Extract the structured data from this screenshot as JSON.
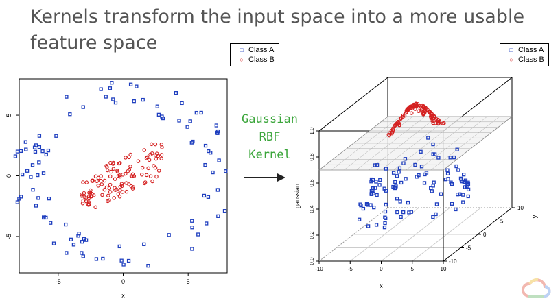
{
  "slide": {
    "title": "Kernels transform the input space into a more usable feature space",
    "kernel_lines": [
      "Gaussian",
      "RBF",
      "Kernel"
    ],
    "accent_color": "#3aa53a",
    "logo_icon": "google-cloud-logo"
  },
  "chart_data": [
    {
      "type": "scatter",
      "xlabel": "x",
      "ylabel": "",
      "xlim": [
        -8,
        8
      ],
      "ylim": [
        -8,
        8
      ],
      "xticks": [
        -5,
        0,
        5
      ],
      "yticks": [
        -5,
        0,
        5
      ],
      "grid": false,
      "legend_placement": "top-right, outside",
      "series": [
        {
          "name": "Class A",
          "marker": "square",
          "color": "#1f3fbf",
          "shape": "ring",
          "r_range": [
            6,
            8.5
          ],
          "count": 100
        },
        {
          "name": "Class B",
          "marker": "circle",
          "color": "#d42020",
          "shape": "cluster",
          "center": [
            0,
            0
          ],
          "spread": 3.2,
          "count": 120
        }
      ]
    },
    {
      "type": "scatter",
      "projection": "3d",
      "xlabel": "x",
      "ylabel": "y",
      "zlabel": "gaussian",
      "xlim": [
        -10,
        10
      ],
      "ylim": [
        -10,
        10
      ],
      "zlim": [
        0,
        1
      ],
      "xticks": [
        -10,
        -5,
        0,
        5,
        10
      ],
      "yticks": [
        -10,
        -5,
        0,
        5,
        10
      ],
      "zticks": [
        0.0,
        0.2,
        0.4,
        0.6,
        0.8,
        1.0
      ],
      "plane_z": 0.7,
      "legend_placement": "top-right, outside",
      "series": [
        {
          "name": "Class A",
          "marker": "square",
          "color": "#1f3fbf",
          "z_range": [
            0.1,
            0.65
          ]
        },
        {
          "name": "Class B",
          "marker": "circle",
          "color": "#d42020",
          "z_range": [
            0.75,
            1.0
          ]
        }
      ]
    }
  ]
}
